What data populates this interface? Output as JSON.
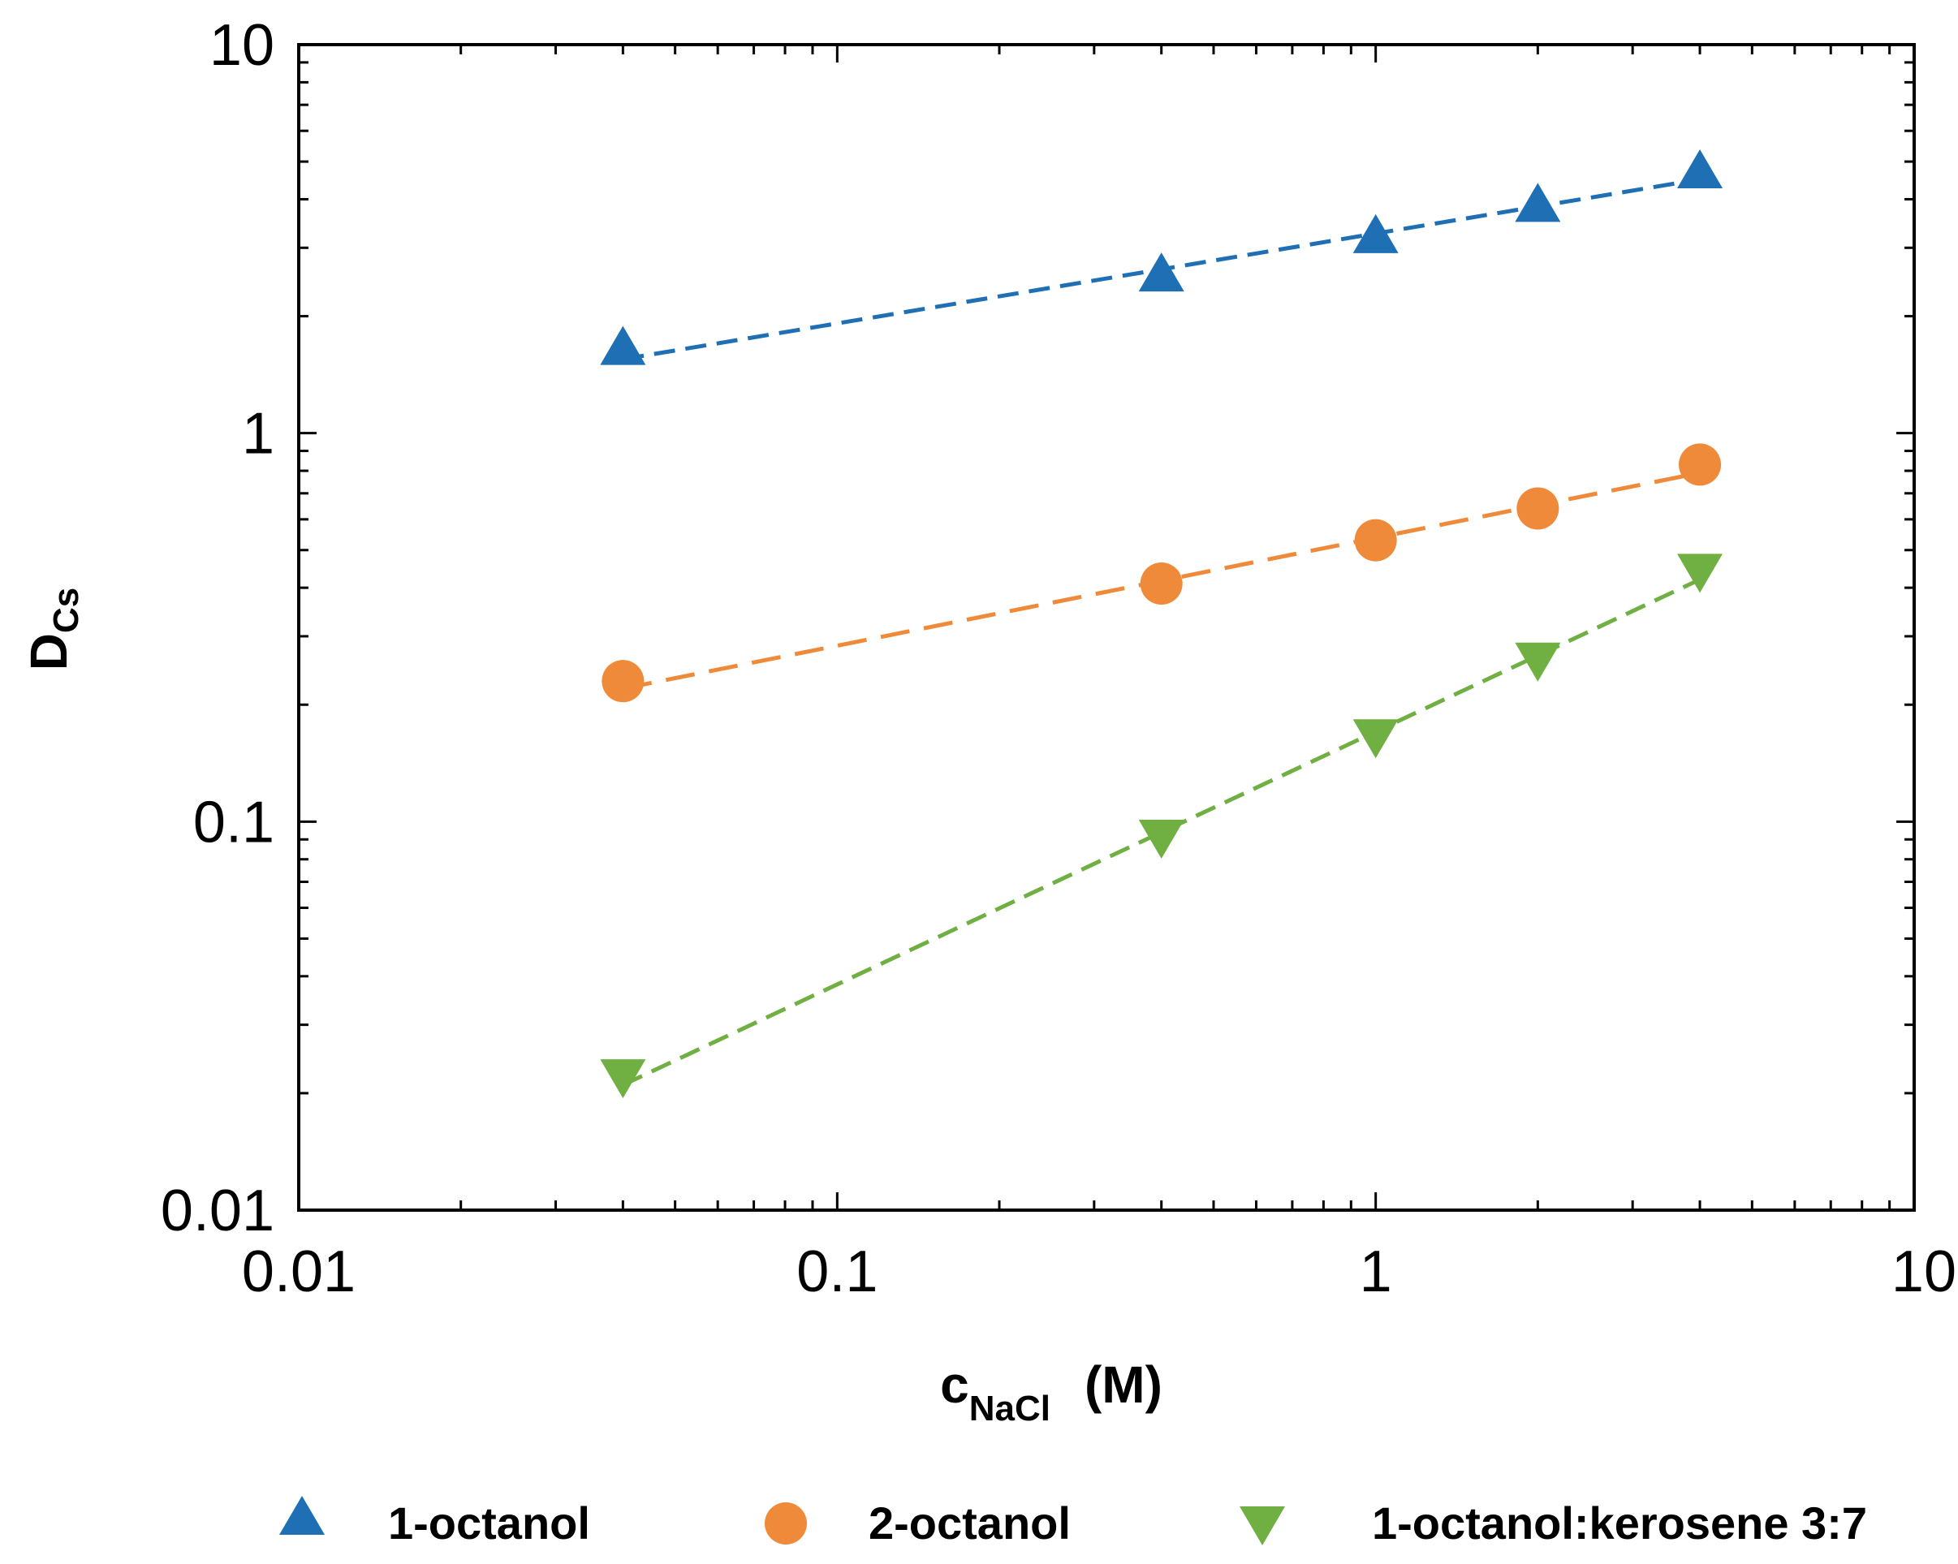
{
  "chart_data": {
    "type": "scatter",
    "title": "",
    "xscale": "log",
    "yscale": "log",
    "xlim": [
      0.01,
      10
    ],
    "ylim": [
      0.01,
      10
    ],
    "xticks": [
      {
        "value": 0.01,
        "label": "0.01"
      },
      {
        "value": 0.1,
        "label": "0.1"
      },
      {
        "value": 1,
        "label": "1"
      },
      {
        "value": 10,
        "label": "10"
      }
    ],
    "yticks": [
      {
        "value": 0.01,
        "label": "0.01"
      },
      {
        "value": 0.1,
        "label": "0.1"
      },
      {
        "value": 1,
        "label": "1"
      },
      {
        "value": 10,
        "label": "10"
      }
    ],
    "xlabel": {
      "main": "c",
      "sub": "NaCl",
      "unit": "(M)"
    },
    "ylabel": {
      "main": "D",
      "sub": "Cs"
    },
    "legend_position": "bottom",
    "series": [
      {
        "name": "1-octanol",
        "marker": "triangle-up",
        "color": "#1f6fb5",
        "x": [
          0.04,
          0.4,
          1,
          2,
          4
        ],
        "y": [
          1.65,
          2.55,
          3.2,
          3.85,
          4.7
        ],
        "fit": [
          0.04,
          1.55,
          4,
          4.5
        ]
      },
      {
        "name": "2-octanol",
        "marker": "circle",
        "color": "#ee8a3a",
        "x": [
          0.04,
          0.4,
          1,
          2,
          4
        ],
        "y": [
          0.23,
          0.41,
          0.53,
          0.64,
          0.83
        ],
        "fit": [
          0.04,
          0.22,
          4,
          0.79
        ]
      },
      {
        "name": "1-octanol:kerosene 3:7",
        "marker": "triangle-down",
        "color": "#70b043",
        "x": [
          0.04,
          0.4,
          1,
          2,
          4
        ],
        "y": [
          0.022,
          0.091,
          0.165,
          0.26,
          0.44
        ],
        "fit": [
          0.04,
          0.021,
          4,
          0.42
        ]
      }
    ]
  }
}
